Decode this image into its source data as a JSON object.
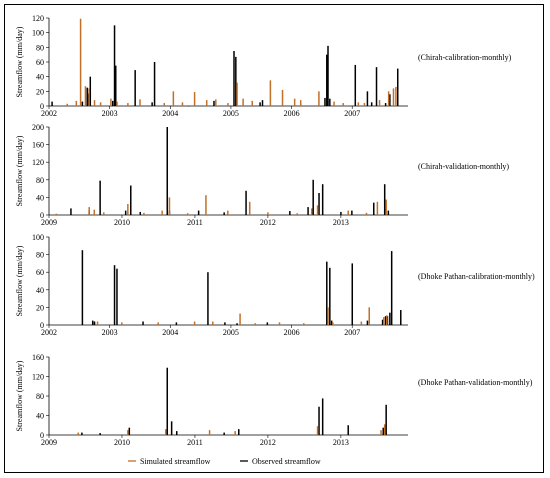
{
  "chart_data": [
    {
      "type": "bar",
      "annotation": "(Chirah-calibration-monthly)",
      "ylabel": "Streamflow (mm/day)",
      "ylim": [
        0,
        120
      ],
      "yticks": [
        0,
        20,
        40,
        60,
        80,
        100,
        120
      ],
      "xlim": [
        2002.0,
        2007.92
      ],
      "xticks": [
        2002,
        2003,
        2004,
        2005,
        2006,
        2007
      ],
      "series": [
        {
          "name": "Observed streamflow",
          "color": "#000000",
          "x": [
            2002.05,
            2002.55,
            2002.63,
            2002.65,
            2002.68,
            2003.05,
            2003.08,
            2003.1,
            2003.42,
            2003.7,
            2003.74,
            2004.3,
            2004.72,
            2005.05,
            2005.08,
            2005.48,
            2005.52,
            2006.55,
            2006.58,
            2006.6,
            2006.63,
            2007.05,
            2007.25,
            2007.32,
            2007.4,
            2007.55,
            2007.62,
            2007.75
          ],
          "values": [
            6,
            6,
            25,
            17,
            40,
            7,
            110,
            55,
            49,
            5,
            60,
            0,
            7,
            75,
            67,
            5,
            8,
            11,
            70,
            82,
            10,
            56,
            20,
            5,
            53,
            4,
            16,
            51
          ]
        },
        {
          "name": "Simulated streamflow",
          "color": "#c07028",
          "x": [
            2002.3,
            2002.45,
            2002.52,
            2002.6,
            2002.66,
            2002.75,
            2002.85,
            2003.02,
            2003.12,
            2003.3,
            2003.5,
            2003.9,
            2004.05,
            2004.2,
            2004.4,
            2004.6,
            2004.75,
            2004.95,
            2005.1,
            2005.2,
            2005.35,
            2005.65,
            2005.85,
            2006.05,
            2006.15,
            2006.45,
            2006.7,
            2006.85,
            2007.1,
            2007.2,
            2007.45,
            2007.6,
            2007.68,
            2007.72
          ],
          "values": [
            3,
            7,
            119,
            27,
            24,
            8,
            5,
            10,
            6,
            4,
            9,
            4,
            20,
            5,
            19,
            8,
            9,
            4,
            32,
            10,
            7,
            35,
            22,
            10,
            8,
            20,
            6,
            4,
            5,
            4,
            8,
            20,
            24,
            26
          ]
        }
      ]
    },
    {
      "type": "bar",
      "annotation": "(Chirah-validation-monthly)",
      "ylabel": "Streamflow (mm/day)",
      "ylim": [
        0,
        200
      ],
      "yticks": [
        0,
        40,
        80,
        120,
        160,
        200
      ],
      "xlim": [
        2009.0,
        2013.92
      ],
      "xticks": [
        2009,
        2010,
        2011,
        2012,
        2013
      ],
      "series": [
        {
          "name": "Observed streamflow",
          "color": "#000000",
          "x": [
            2009.3,
            2009.55,
            2009.7,
            2010.05,
            2010.12,
            2010.25,
            2010.62,
            2010.65,
            2011.05,
            2011.4,
            2011.7,
            2012.3,
            2012.55,
            2012.62,
            2012.7,
            2012.75,
            2013.0,
            2013.15,
            2013.45,
            2013.6,
            2013.65
          ],
          "values": [
            15,
            10,
            78,
            10,
            67,
            7,
            200,
            10,
            10,
            6,
            55,
            9,
            18,
            80,
            50,
            70,
            7,
            10,
            28,
            70,
            10
          ]
        },
        {
          "name": "Simulated streamflow",
          "color": "#c07028",
          "x": [
            2009.1,
            2009.55,
            2009.62,
            2009.75,
            2010.08,
            2010.3,
            2010.55,
            2010.65,
            2010.9,
            2011.15,
            2011.45,
            2011.75,
            2012.0,
            2012.4,
            2012.6,
            2012.68,
            2013.1,
            2013.35,
            2013.5,
            2013.62
          ],
          "values": [
            3,
            18,
            12,
            6,
            25,
            5,
            10,
            40,
            4,
            45,
            10,
            30,
            6,
            4,
            15,
            22,
            10,
            5,
            30,
            35
          ]
        }
      ]
    },
    {
      "type": "bar",
      "annotation": "(Dhoke Pathan-calibration-monthly)",
      "ylabel": "Streamflow (mm/day)",
      "ylim": [
        0,
        100
      ],
      "yticks": [
        0,
        20,
        40,
        60,
        80,
        100
      ],
      "xlim": [
        2002.0,
        2007.92
      ],
      "xticks": [
        2002,
        2003,
        2004,
        2005,
        2006,
        2007
      ],
      "series": [
        {
          "name": "Observed streamflow",
          "color": "#000000",
          "x": [
            2002.55,
            2002.72,
            2002.75,
            2003.08,
            2003.12,
            2003.55,
            2004.1,
            2004.62,
            2004.9,
            2005.1,
            2005.6,
            2006.58,
            2006.63,
            2006.66,
            2007.0,
            2007.25,
            2007.5,
            2007.55,
            2007.58,
            2007.62,
            2007.65,
            2007.8
          ],
          "values": [
            85,
            5,
            4,
            68,
            64,
            4,
            3,
            60,
            3,
            2,
            3,
            72,
            65,
            5,
            70,
            5,
            6,
            10,
            10,
            14,
            84,
            17
          ]
        },
        {
          "name": "Simulated streamflow",
          "color": "#c07028",
          "x": [
            2002.8,
            2003.2,
            2003.8,
            2004.4,
            2004.7,
            2005.15,
            2005.4,
            2005.8,
            2006.2,
            2006.6,
            2006.68,
            2007.15,
            2007.28,
            2007.52,
            2007.57
          ],
          "values": [
            4,
            3,
            3,
            4,
            4,
            13,
            2,
            3,
            2,
            20,
            3,
            4,
            20,
            9,
            11
          ]
        }
      ]
    },
    {
      "type": "bar",
      "annotation": "(Dhoke Pathan-validation-monthly)",
      "ylabel": "Streamflow (mm/day)",
      "ylim": [
        0,
        160
      ],
      "yticks": [
        0,
        40,
        80,
        120,
        160
      ],
      "xlim": [
        2009.0,
        2013.92
      ],
      "xticks": [
        2009,
        2010,
        2011,
        2012,
        2013
      ],
      "series": [
        {
          "name": "Observed streamflow",
          "color": "#000000",
          "x": [
            2009.45,
            2009.7,
            2010.1,
            2010.62,
            2010.68,
            2010.75,
            2011.4,
            2011.6,
            2012.7,
            2012.75,
            2013.1,
            2013.58,
            2013.62
          ],
          "values": [
            5,
            4,
            15,
            138,
            28,
            8,
            5,
            12,
            58,
            75,
            20,
            15,
            62
          ]
        },
        {
          "name": "Simulated streamflow",
          "color": "#c07028",
          "x": [
            2009.4,
            2010.08,
            2010.6,
            2011.2,
            2011.55,
            2012.68,
            2013.55,
            2013.6
          ],
          "values": [
            5,
            10,
            12,
            10,
            8,
            18,
            10,
            22
          ]
        }
      ]
    }
  ],
  "legend": [
    {
      "label": "Simulated streamflow",
      "color": "#c07028"
    },
    {
      "label": "Observed streamflow",
      "color": "#000000"
    }
  ]
}
